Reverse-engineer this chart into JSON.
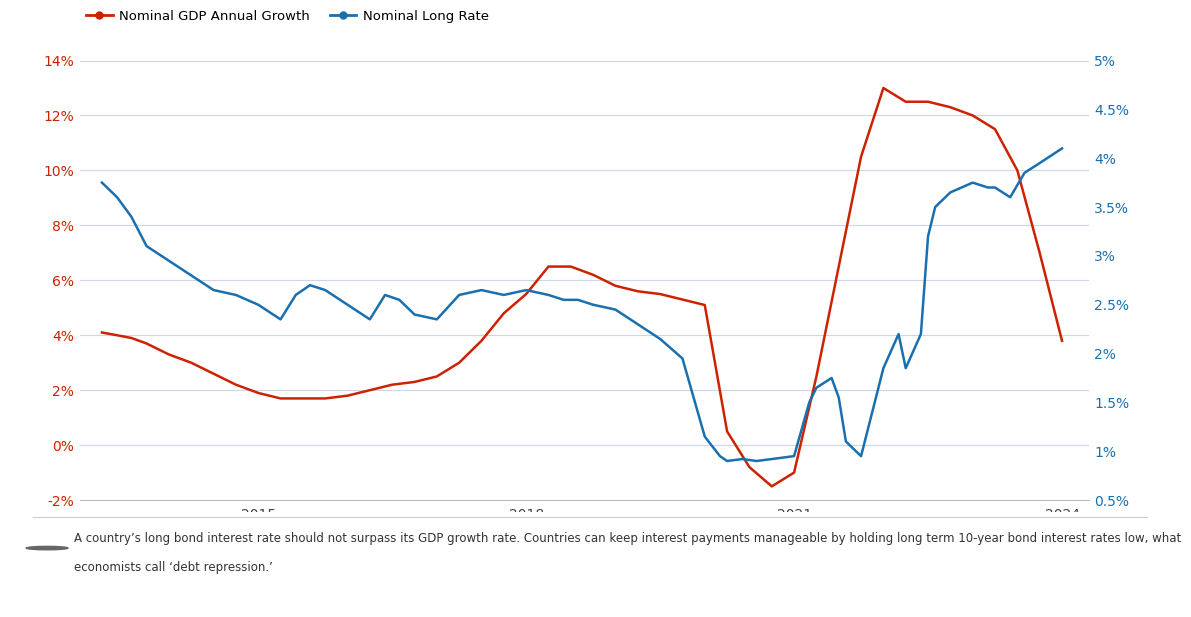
{
  "legend_entries": [
    "Nominal GDP Annual Growth",
    "Nominal Long Rate"
  ],
  "gdp_color": "#cc2200",
  "rate_color": "#1a6faf",
  "left_ylim": [
    -2,
    14
  ],
  "right_ylim": [
    0.5,
    5.0
  ],
  "left_yticks": [
    -2,
    0,
    2,
    4,
    6,
    8,
    10,
    12,
    14
  ],
  "right_yticks": [
    0.5,
    1.0,
    1.5,
    2.0,
    2.5,
    3.0,
    3.5,
    4.0,
    4.5,
    5.0
  ],
  "background_color": "#ffffff",
  "grid_color": "#ccd6e8",
  "footnote_line1": "A country’s long bond interest rate should not surpass its GDP growth rate. Countries can keep interest payments manageable by holding long term 10-year bond interest rates low, what",
  "footnote_line2": "economists call ‘debt repression.’",
  "gdp_x": [
    2013.25,
    2013.42,
    2013.58,
    2013.75,
    2014.0,
    2014.25,
    2014.5,
    2014.75,
    2015.0,
    2015.25,
    2015.5,
    2015.75,
    2016.0,
    2016.25,
    2016.5,
    2016.75,
    2017.0,
    2017.25,
    2017.5,
    2017.75,
    2018.0,
    2018.25,
    2018.5,
    2018.75,
    2019.0,
    2019.25,
    2019.5,
    2019.75,
    2020.0,
    2020.25,
    2020.5,
    2020.75,
    2021.0,
    2021.25,
    2021.5,
    2021.75,
    2022.0,
    2022.25,
    2022.5,
    2022.75,
    2023.0,
    2023.25,
    2023.5,
    2023.75,
    2024.0
  ],
  "gdp_y": [
    4.1,
    4.0,
    3.9,
    3.7,
    3.3,
    3.0,
    2.6,
    2.2,
    1.9,
    1.7,
    1.7,
    1.7,
    1.8,
    2.0,
    2.2,
    2.3,
    2.5,
    3.0,
    3.8,
    4.8,
    5.5,
    6.5,
    6.5,
    6.2,
    5.8,
    5.6,
    5.5,
    5.3,
    5.1,
    0.5,
    -0.8,
    -1.5,
    -1.0,
    2.5,
    6.5,
    10.5,
    13.0,
    12.5,
    12.5,
    12.3,
    12.0,
    11.5,
    10.0,
    7.0,
    3.8
  ],
  "rate_x": [
    2013.25,
    2013.42,
    2013.58,
    2013.75,
    2014.0,
    2014.25,
    2014.5,
    2014.75,
    2015.0,
    2015.25,
    2015.42,
    2015.58,
    2015.75,
    2016.0,
    2016.25,
    2016.42,
    2016.58,
    2016.75,
    2017.0,
    2017.25,
    2017.5,
    2017.75,
    2018.0,
    2018.25,
    2018.42,
    2018.58,
    2018.75,
    2019.0,
    2019.25,
    2019.5,
    2019.75,
    2020.0,
    2020.17,
    2020.25,
    2020.42,
    2020.58,
    2020.75,
    2021.0,
    2021.17,
    2021.25,
    2021.42,
    2021.5,
    2021.58,
    2021.75,
    2022.0,
    2022.17,
    2022.25,
    2022.42,
    2022.5,
    2022.58,
    2022.75,
    2023.0,
    2023.17,
    2023.25,
    2023.42,
    2023.58,
    2023.75,
    2024.0
  ],
  "rate_y": [
    3.75,
    3.6,
    3.4,
    3.1,
    2.95,
    2.8,
    2.65,
    2.6,
    2.5,
    2.35,
    2.6,
    2.7,
    2.65,
    2.5,
    2.35,
    2.6,
    2.55,
    2.4,
    2.35,
    2.6,
    2.65,
    2.6,
    2.65,
    2.6,
    2.55,
    2.55,
    2.5,
    2.45,
    2.3,
    2.15,
    1.95,
    1.15,
    0.95,
    0.9,
    0.92,
    0.9,
    0.92,
    0.95,
    1.5,
    1.65,
    1.75,
    1.55,
    1.1,
    0.95,
    1.85,
    2.2,
    1.85,
    2.2,
    3.2,
    3.5,
    3.65,
    3.75,
    3.7,
    3.7,
    3.6,
    3.85,
    3.95,
    4.1
  ]
}
